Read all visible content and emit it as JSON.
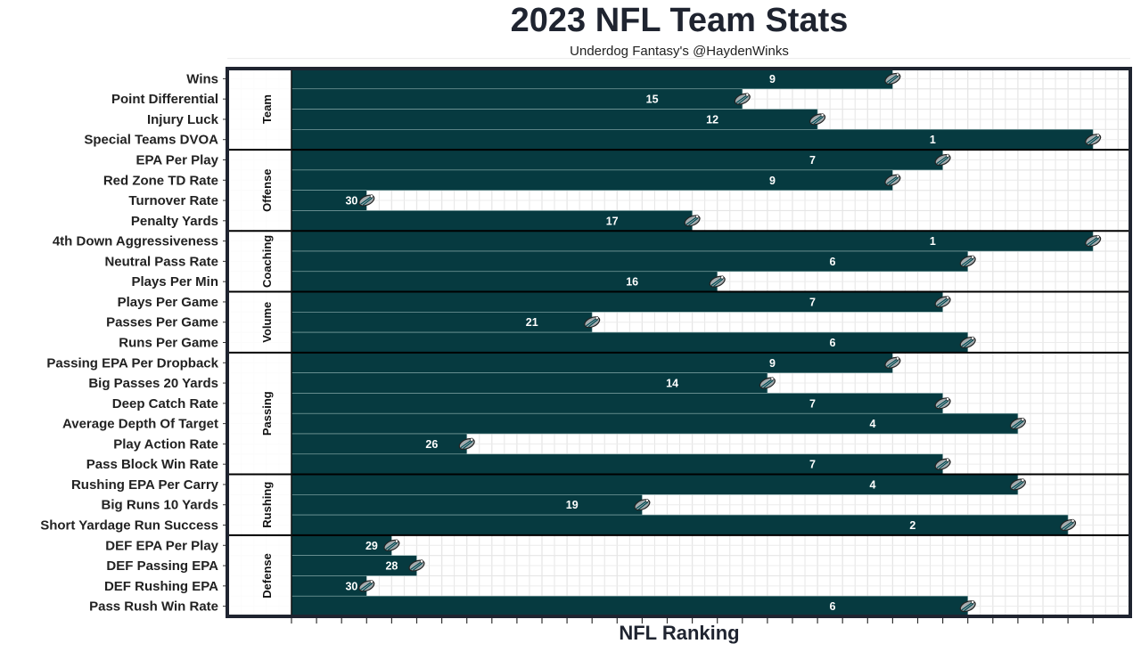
{
  "chart_data": {
    "type": "bar",
    "orientation": "horizontal",
    "title": "2023 NFL Team Stats",
    "subtitle": "Underdog Fantasy's @HaydenWinks",
    "xlabel": "NFL Ranking",
    "ylabel": "",
    "note": "Bar length encodes 33 - rank; label shows rank",
    "xlim": [
      0,
      33.5
    ],
    "grid": true,
    "legend": "none",
    "bar_color": "#063a40",
    "groups": [
      {
        "name": "Team",
        "items": [
          {
            "label": "Wins",
            "rank": 9
          },
          {
            "label": "Point Differential",
            "rank": 15
          },
          {
            "label": "Injury Luck",
            "rank": 12
          },
          {
            "label": "Special Teams DVOA",
            "rank": 1
          }
        ]
      },
      {
        "name": "Offense",
        "items": [
          {
            "label": "EPA Per Play",
            "rank": 7
          },
          {
            "label": "Red Zone TD Rate",
            "rank": 9
          },
          {
            "label": "Turnover Rate",
            "rank": 30
          },
          {
            "label": "Penalty Yards",
            "rank": 17
          }
        ]
      },
      {
        "name": "Coaching",
        "items": [
          {
            "label": "4th Down Aggressiveness",
            "rank": 1
          },
          {
            "label": "Neutral Pass Rate",
            "rank": 6
          },
          {
            "label": "Plays Per Min",
            "rank": 16
          }
        ]
      },
      {
        "name": "Volume",
        "items": [
          {
            "label": "Plays Per Game",
            "rank": 7
          },
          {
            "label": "Passes Per Game",
            "rank": 21
          },
          {
            "label": "Runs Per Game",
            "rank": 6
          }
        ]
      },
      {
        "name": "Passing",
        "items": [
          {
            "label": "Passing EPA Per Dropback",
            "rank": 9
          },
          {
            "label": "Big Passes 20 Yards",
            "rank": 14
          },
          {
            "label": "Deep Catch Rate",
            "rank": 7
          },
          {
            "label": "Average Depth Of Target",
            "rank": 4
          },
          {
            "label": "Play Action Rate",
            "rank": 26
          },
          {
            "label": "Pass Block Win Rate",
            "rank": 7
          }
        ]
      },
      {
        "name": "Rushing",
        "items": [
          {
            "label": "Rushing EPA Per Carry",
            "rank": 4
          },
          {
            "label": "Big Runs 10 Yards",
            "rank": 19
          },
          {
            "label": "Short Yardage Run Success",
            "rank": 2
          }
        ]
      },
      {
        "name": "Defense",
        "items": [
          {
            "label": "DEF EPA Per Play",
            "rank": 29
          },
          {
            "label": "DEF Passing EPA",
            "rank": 28
          },
          {
            "label": "DEF Rushing EPA",
            "rank": 30
          },
          {
            "label": "Pass Rush Win Rate",
            "rank": 6
          }
        ]
      }
    ]
  }
}
